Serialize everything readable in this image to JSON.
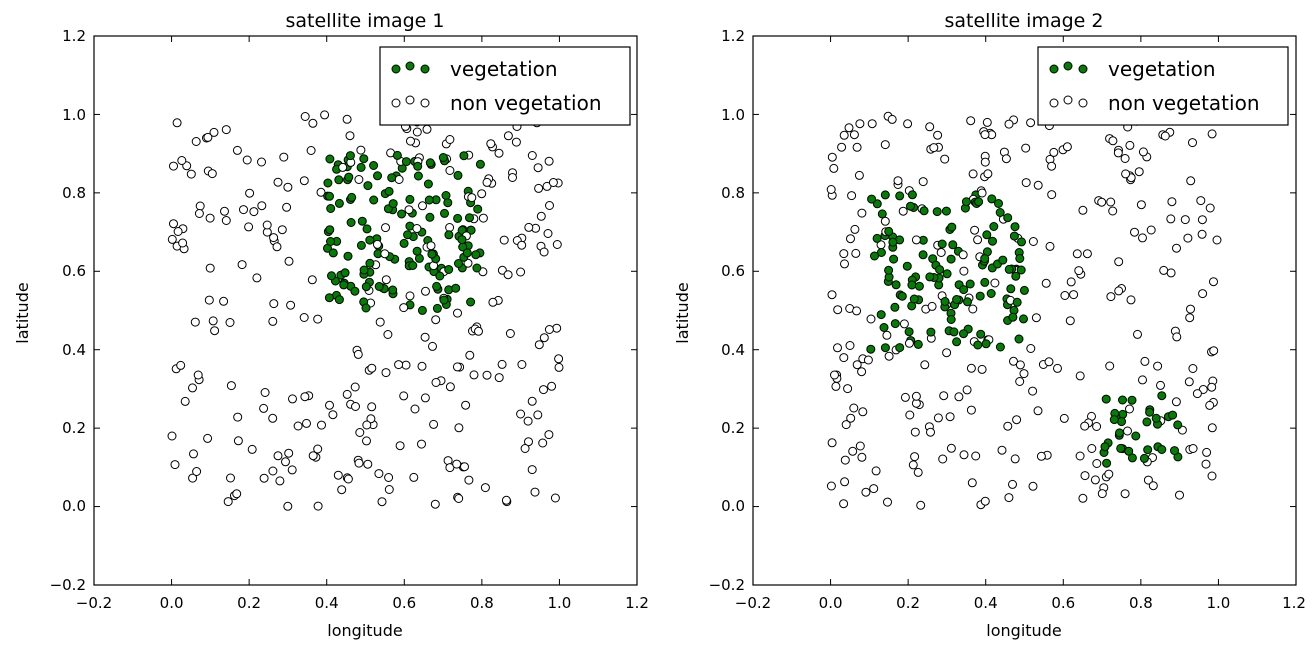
{
  "colors": {
    "vegetation": "#007f00",
    "non_vegetation": "#ffffff",
    "edge": "#000000"
  },
  "chart_data": [
    {
      "type": "scatter",
      "title": "satellite image 1",
      "xlabel": "longitude",
      "ylabel": "latitude",
      "xlim": [
        -0.2,
        1.2
      ],
      "ylim": [
        -0.2,
        1.2
      ],
      "xticks": [
        "−0.2",
        "0.0",
        "0.2",
        "0.4",
        "0.6",
        "0.8",
        "1.0",
        "1.2"
      ],
      "yticks": [
        "−0.2",
        "0.0",
        "0.2",
        "0.4",
        "0.6",
        "0.8",
        "1.0",
        "1.2"
      ],
      "legend": "top-right",
      "grid": false,
      "vegetation_region": {
        "x": [
          0.4,
          0.8
        ],
        "y": [
          0.5,
          0.9
        ]
      },
      "series": [
        {
          "name": "vegetation",
          "count": 180
        },
        {
          "name": "non vegetation",
          "count": 250
        }
      ]
    },
    {
      "type": "scatter",
      "title": "satellite image 2",
      "xlabel": "longitude",
      "ylabel": "latitude",
      "xlim": [
        -0.2,
        1.2
      ],
      "ylim": [
        -0.2,
        1.2
      ],
      "xticks": [
        "−0.2",
        "0.0",
        "0.2",
        "0.4",
        "0.6",
        "0.8",
        "1.0",
        "1.2"
      ],
      "yticks": [
        "−0.2",
        "0.0",
        "0.2",
        "0.4",
        "0.6",
        "0.8",
        "1.0",
        "1.2"
      ],
      "legend": "top-right",
      "grid": false,
      "vegetation_regions": [
        {
          "x": [
            0.1,
            0.5
          ],
          "y": [
            0.4,
            0.8
          ]
        },
        {
          "x": [
            0.7,
            0.9
          ],
          "y": [
            0.1,
            0.3
          ]
        }
      ],
      "series": [
        {
          "name": "vegetation",
          "count": 200
        },
        {
          "name": "non vegetation",
          "count": 250
        }
      ]
    }
  ]
}
